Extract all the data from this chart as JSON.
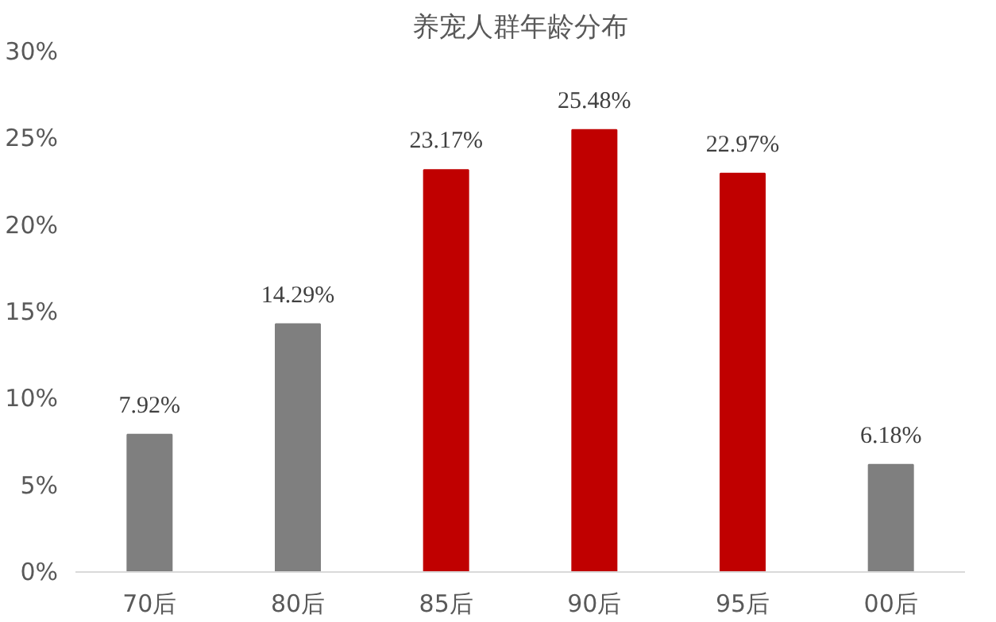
{
  "chart_data": {
    "type": "bar",
    "title": "养宠人群年龄分布",
    "categories": [
      "70后",
      "80后",
      "85后",
      "90后",
      "95后",
      "00后"
    ],
    "values": [
      7.92,
      14.29,
      23.17,
      25.48,
      22.97,
      6.18
    ],
    "colors": [
      "#7f7f7f",
      "#7f7f7f",
      "#c00000",
      "#c00000",
      "#c00000",
      "#7f7f7f"
    ],
    "value_labels": [
      "7.92%",
      "14.29%",
      "23.17%",
      "25.48%",
      "22.97%",
      "6.18%"
    ],
    "ylim": [
      0,
      30
    ],
    "yticks": [
      {
        "value": 0,
        "label": "0%"
      },
      {
        "value": 5,
        "label": "5%"
      },
      {
        "value": 10,
        "label": "10%"
      },
      {
        "value": 15,
        "label": "15%"
      },
      {
        "value": 20,
        "label": "20%"
      },
      {
        "value": 25,
        "label": "25%"
      },
      {
        "value": 30,
        "label": "30%"
      }
    ],
    "grid": false
  }
}
